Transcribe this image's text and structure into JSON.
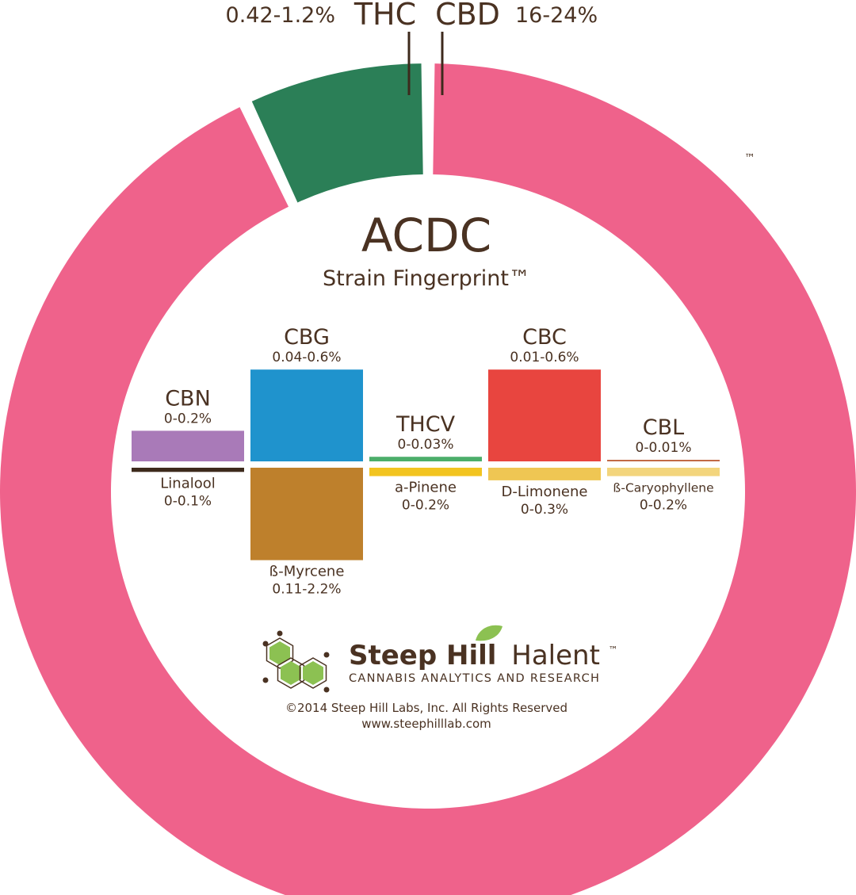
{
  "header": {
    "thc_range": "0.42-1.2%",
    "thc_label": "THC",
    "cbd_label": "CBD",
    "cbd_range": "16-24%"
  },
  "trademark": "™",
  "title": "ACDC",
  "subtitle": "Strain Fingerprint™",
  "chart_data": [
    {
      "type": "pie",
      "variant": "donut",
      "slices": [
        {
          "label": "CBD",
          "value": 93.0,
          "range": "16-24%",
          "color": "#ef628b"
        },
        {
          "label": "THC",
          "value": 7.0,
          "range": "0.42-1.2%",
          "color": "#2b7f57"
        }
      ]
    },
    {
      "type": "bar",
      "orientation": "mirrored",
      "cannabinoids": [
        {
          "name": "CBN",
          "range": "0-0.2%",
          "max": 0.2,
          "color": "#a97ab8"
        },
        {
          "name": "CBG",
          "range": "0.04-0.6%",
          "max": 0.6,
          "color": "#1f93cd"
        },
        {
          "name": "THCV",
          "range": "0-0.03%",
          "max": 0.03,
          "color": "#4cae6a"
        },
        {
          "name": "CBC",
          "range": "0.01-0.6%",
          "max": 0.6,
          "color": "#e8453f"
        },
        {
          "name": "CBL",
          "range": "0-0.01%",
          "max": 0.01,
          "color": "#c26a46"
        }
      ],
      "terpenes": [
        {
          "name": "Linalool",
          "range": "0-0.1%",
          "max": 0.1,
          "color": "#3d2a1c"
        },
        {
          "name": "ß-Myrcene",
          "range": "0.11-2.2%",
          "max": 2.2,
          "color": "#be802c"
        },
        {
          "name": "a-Pinene",
          "range": "0-0.2%",
          "max": 0.2,
          "color": "#f2c420"
        },
        {
          "name": "D-Limonene",
          "range": "0-0.3%",
          "max": 0.3,
          "color": "#efc653"
        },
        {
          "name": "ß-Caryophyllene",
          "range": "0-0.2%",
          "max": 0.2,
          "color": "#f3d57d"
        }
      ]
    }
  ],
  "logo": {
    "name_bold": "Steep Hill",
    "name_light": "Halent",
    "tm": "™",
    "tagline": "CANNABIS ANALYTICS AND RESEARCH",
    "hex_color": "#8cc152"
  },
  "footer": {
    "copyright": "©2014 Steep Hill Labs, Inc. All Rights Reserved",
    "url": "www.steephilllab.com"
  }
}
